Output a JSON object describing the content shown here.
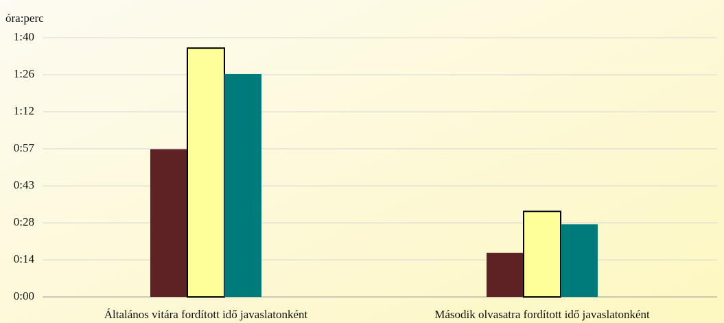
{
  "chart_data": {
    "type": "bar",
    "y_label": "óra:perc",
    "categories": [
      "Általános vitára fordított idő javaslatonként",
      "Második olvasatra fordított idő javaslatonként"
    ],
    "series": [
      {
        "color": "#5e2124",
        "values": [
          57,
          17
        ]
      },
      {
        "color": "#ffff99",
        "edgecolor": "#000000",
        "values": [
          96,
          33
        ]
      },
      {
        "color": "#007b7b",
        "values": [
          86,
          28
        ]
      }
    ],
    "ylim": [
      0,
      100
    ],
    "yticks": [
      {
        "value": 0,
        "label": "0:00"
      },
      {
        "value": 14.29,
        "label": "0:14"
      },
      {
        "value": 28.57,
        "label": "0:28"
      },
      {
        "value": 42.86,
        "label": "0:43"
      },
      {
        "value": 57.14,
        "label": "0:57"
      },
      {
        "value": 71.43,
        "label": "1:12"
      },
      {
        "value": 85.71,
        "label": "1:26"
      },
      {
        "value": 100,
        "label": "1:40"
      }
    ],
    "grid": true
  }
}
